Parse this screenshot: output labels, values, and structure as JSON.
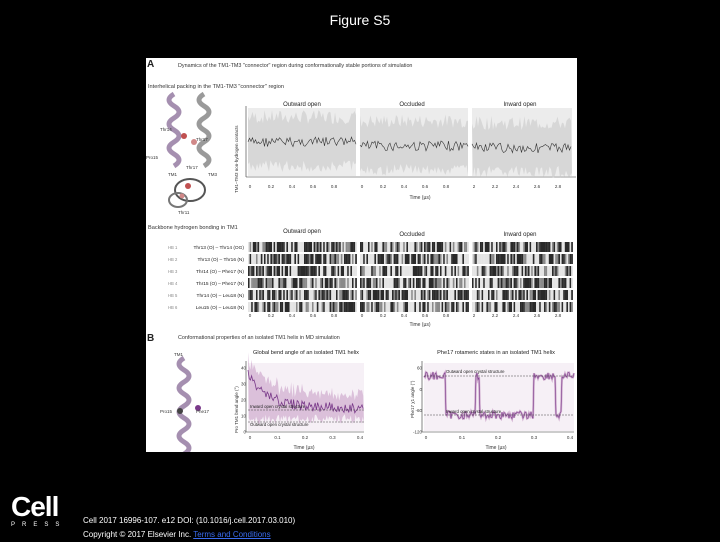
{
  "slide_title": "Figure S5",
  "panelA": {
    "label": "A",
    "heading": "Dynamics of the TM1-TM3 \"connector\" region during conformationally stable portions of simulation",
    "sub_heading": "Interhelical packing in the TM1-TM3 \"connector\" region",
    "conditions": [
      "Outward open",
      "Occluded",
      "Inward open"
    ],
    "ylabel": "TM1–TM3 non-hydrogen contacts",
    "xlabel": "Time (µs)",
    "xticks": [
      "0",
      "0.2",
      "0.4",
      "0.6",
      "0.8",
      "0",
      "0.2",
      "0.4",
      "0.6",
      "0.8",
      "2",
      "2.2",
      "2.4",
      "2.6",
      "2.8"
    ],
    "structure_labels": [
      "Thr14",
      "Thr17",
      "Pro15",
      "TM1",
      "TM3",
      "Thr17",
      "Thr11"
    ],
    "hbond_heading": "Backbone hydrogen bonding in TM1",
    "hbond_rows": [
      "Thr13 (O) – Thr14 (OG)",
      "Thr13 (O) – Thr16 (N)",
      "Thr14 (O) – Phe17 (N)",
      "Thr15 (O) – Phe17 (N)",
      "Thr14 (O) – Leu18 (N)",
      "Leu15 (O) – Leu18 (N)"
    ],
    "hbond_ids": [
      "HB 1",
      "HB 2",
      "HB 3",
      "HB 4",
      "HB 5",
      "HB 6"
    ]
  },
  "panelB": {
    "label": "B",
    "heading": "Conformational properties of an isolated TM1 helix in MD simulation",
    "structure_labels": [
      "TM1",
      "Pro15",
      "Phe17"
    ],
    "left_plot": {
      "title": "Global bend angle of an isolated TM1 helix",
      "ylabel": "Pro TM1 bend angle (°)",
      "xlabel": "Time (µs)",
      "xticks": [
        "0",
        "0.1",
        "0.2",
        "0.3",
        "0.4"
      ],
      "yticks": [
        "40",
        "30",
        "20",
        "10",
        "0"
      ],
      "ref_labels": [
        "Inward open crystal structure",
        "Outward open crystal structure"
      ]
    },
    "right_plot": {
      "title": "Phe17 rotameric states in an isolated TM1 helix",
      "ylabel": "Phe17 χ1 angle (°)",
      "xlabel": "Time (µs)",
      "xticks": [
        "0",
        "0.1",
        "0.2",
        "0.3",
        "0.4"
      ],
      "yticks": [
        "60",
        "0",
        "-60",
        "-120"
      ],
      "ref_labels": [
        "Outward open crystal structure",
        "Inward open crystal structure"
      ]
    }
  },
  "logo": {
    "word": "Cell",
    "press": "PRESS"
  },
  "citation": {
    "line1": "Cell 2017 16996-107. e12 DOI: (10.1016/j.cell.2017.03.010)",
    "line2_prefix": "Copyright © 2017 Elsevier Inc. ",
    "line2_link": "Terms and Conditions"
  },
  "colors": {
    "background": "#000000",
    "text": "#ffffff",
    "link": "#3a6cf0",
    "trace": "#333333",
    "band": "#cfcfcf",
    "purple": "#7a3a8a",
    "pink": "#c9a0c8"
  }
}
